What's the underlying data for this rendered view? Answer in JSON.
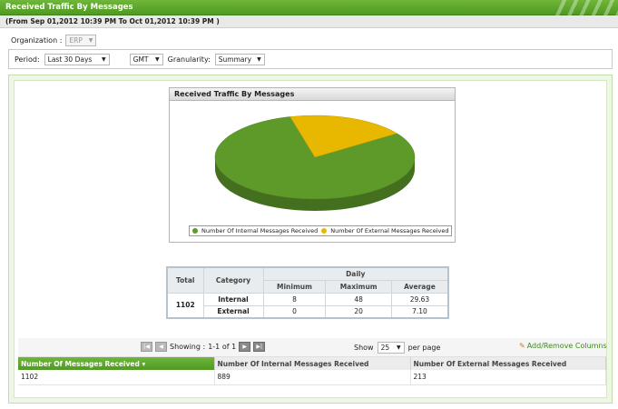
{
  "window": {
    "title": "Received Traffic By Messages",
    "date_range": "(From Sep 01,2012 10:39 PM To Oct 01,2012 10:39 PM )"
  },
  "organization": {
    "label": "Organization :",
    "value": "ERP"
  },
  "filters": {
    "period_label": "Period:",
    "period_value": "Last 30 Days",
    "timezone_value": "GMT",
    "granularity_label": "Granularity:",
    "granularity_value": "Summary"
  },
  "chart_panel": {
    "title": "Received Traffic By Messages"
  },
  "chart_data": {
    "type": "pie",
    "title": "Received Traffic By Messages",
    "categories": [
      "Number Of Internal Messages Received",
      "Number Of External Messages Received"
    ],
    "values": [
      889,
      213
    ],
    "colors": [
      "#5e9a2a",
      "#e8b800"
    ]
  },
  "stats": {
    "headers": {
      "total": "Total",
      "category": "Category",
      "daily": "Daily",
      "min": "Minimum",
      "max": "Maximum",
      "avg": "Average"
    },
    "total": "1102",
    "rows": [
      {
        "category": "Internal",
        "min": "8",
        "max": "48",
        "avg": "29.63"
      },
      {
        "category": "External",
        "min": "0",
        "max": "20",
        "avg": "7.10"
      }
    ]
  },
  "pager": {
    "showing_label": "Showing :",
    "range": "1-1 of 1",
    "show_label": "Show",
    "per_page_value": "25",
    "per_page_suffix": "per page",
    "add_remove": "Add/Remove Columns"
  },
  "grid": {
    "columns": [
      "Number Of Messages Received",
      "Number Of Internal Messages Received",
      "Number Of External Messages Received"
    ],
    "rows": [
      [
        "1102",
        "889",
        "213"
      ]
    ]
  }
}
